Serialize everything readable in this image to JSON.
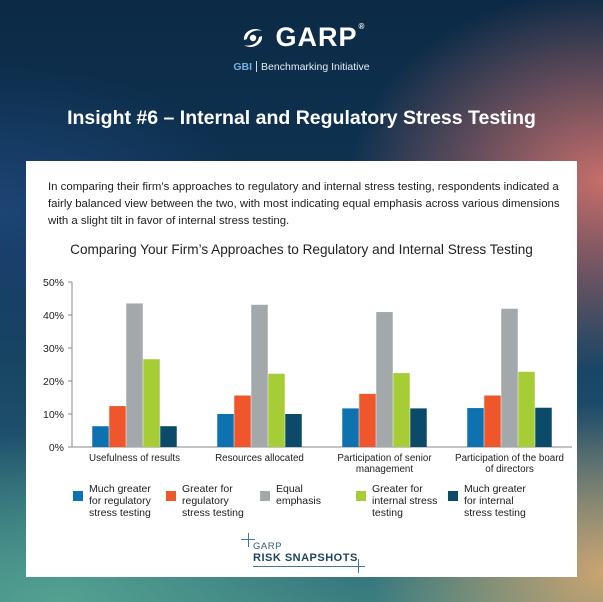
{
  "brand": {
    "name": "GARP",
    "registered": "®",
    "sub_prefix": "GBI",
    "sub_text": "Benchmarking Initiative"
  },
  "headline": "Insight #6 – Internal and Regulatory Stress Testing",
  "intro": "In comparing their firm’s approaches to regulatory and internal stress testing, respondents indicated a fairly balanced view between the two, with most indicating equal emphasis across various dimensions with a slight tilt in favor of internal stress testing.",
  "footer": {
    "line1": "GARP",
    "line2": "RISK SNAPSHOTS"
  },
  "chart_data": {
    "type": "bar",
    "title": "Comparing Your Firm’s Approaches to Regulatory and Internal Stress Testing",
    "categories": [
      "Usefulness of results",
      "Resources allocated",
      "Participation of senior management",
      "Participation of the board of directors"
    ],
    "category_lines": [
      [
        "Usefulness of results"
      ],
      [
        "Resources allocated"
      ],
      [
        "Participation of senior",
        "management"
      ],
      [
        "Participation of the board",
        "of directors"
      ]
    ],
    "ylim": [
      0,
      50
    ],
    "yticks": [
      0,
      10,
      20,
      30,
      40,
      50
    ],
    "ytick_labels": [
      "0%",
      "10%",
      "20%",
      "30%",
      "40%",
      "50%"
    ],
    "y_unit": "%",
    "xlabel": "",
    "ylabel": "",
    "grid": false,
    "legend_position": "bottom",
    "series": [
      {
        "name": "Much greater for regulatory stress testing",
        "label_lines": [
          "Much greater",
          "for regulatory",
          "stress testing"
        ],
        "color": "#0e72b0",
        "values": [
          6.3,
          10.0,
          11.7,
          11.8
        ]
      },
      {
        "name": "Greater for regulatory stress testing",
        "label_lines": [
          "Greater for",
          "regulatory",
          "stress testing"
        ],
        "color": "#f0562b",
        "values": [
          12.4,
          15.6,
          16.1,
          15.6
        ]
      },
      {
        "name": "Equal emphasis",
        "label_lines": [
          "Equal",
          "emphasis"
        ],
        "color": "#a3a9ab",
        "values": [
          43.5,
          43.1,
          40.9,
          41.9
        ]
      },
      {
        "name": "Greater for internal stress testing",
        "label_lines": [
          "Greater for",
          "internal stress",
          "testing"
        ],
        "color": "#a6cc36",
        "values": [
          26.6,
          22.2,
          22.4,
          22.8
        ]
      },
      {
        "name": "Much greater for internal stress testing",
        "label_lines": [
          "Much greater",
          "for internal",
          "stress testing"
        ],
        "color": "#0b4a68",
        "values": [
          6.3,
          10.0,
          11.7,
          11.9
        ]
      }
    ]
  }
}
